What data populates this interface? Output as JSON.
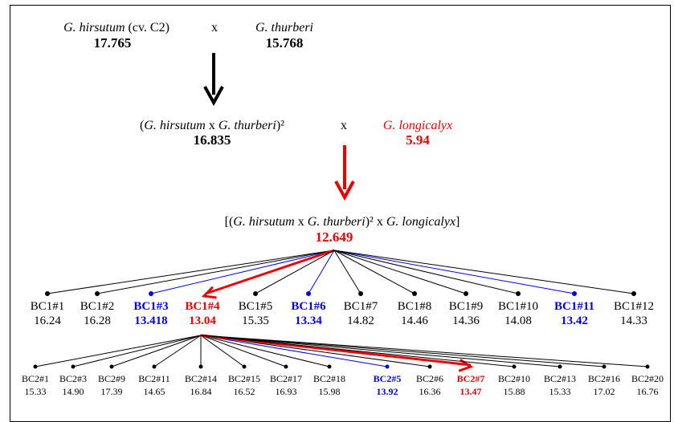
{
  "colors": {
    "default": "#000000",
    "blue": "#0000ee",
    "red": "#ee0000"
  },
  "cross1": {
    "parent_a": {
      "species": "G. hirsutum",
      "note": "(cv. C2)",
      "value": "17.765"
    },
    "x_symbol": "x",
    "parent_b": {
      "species": "G. thurberi",
      "value": "15.768"
    }
  },
  "cross2": {
    "hybrid": {
      "open": "(",
      "species_a": "G. hirsutum",
      "x_symbol": "x",
      "species_b": "G. thurberi",
      "close": ")²",
      "value": "16.835"
    },
    "x_symbol": "x",
    "parent_c": {
      "species": "G. longicalyx",
      "value": "5.94"
    }
  },
  "f1": {
    "open": "[(",
    "species_a": "G. hirsutum",
    "x_symbol_1": "x",
    "species_b": "G. thurberi",
    "close_sq": ")²",
    "x_symbol_2": "x",
    "species_c": "G. longicalyx",
    "close": "]",
    "value": "12.649"
  },
  "bc1": [
    {
      "label": "BC1#1",
      "value": "16.24",
      "color": "default"
    },
    {
      "label": "BC1#2",
      "value": "16.28",
      "color": "default"
    },
    {
      "label": "BC1#3",
      "value": "13.418",
      "color": "blue"
    },
    {
      "label": "BC1#4",
      "value": "13.04",
      "color": "red"
    },
    {
      "label": "BC1#5",
      "value": "15.35",
      "color": "default"
    },
    {
      "label": "BC1#6",
      "value": "13.34",
      "color": "blue"
    },
    {
      "label": "BC1#7",
      "value": "14.82",
      "color": "default"
    },
    {
      "label": "BC1#8",
      "value": "14.46",
      "color": "default"
    },
    {
      "label": "BC1#9",
      "value": "14.36",
      "color": "default"
    },
    {
      "label": "BC1#10",
      "value": "14.08",
      "color": "default"
    },
    {
      "label": "BC1#11",
      "value": "13.42",
      "color": "blue"
    },
    {
      "label": "BC1#12",
      "value": "14.33",
      "color": "default"
    }
  ],
  "bc2": [
    {
      "label": "BC2#1",
      "value": "15.33",
      "color": "default"
    },
    {
      "label": "BC2#3",
      "value": "14.90",
      "color": "default"
    },
    {
      "label": "BC2#9",
      "value": "17.39",
      "color": "default"
    },
    {
      "label": "BC2#11",
      "value": "14.65",
      "color": "default"
    },
    {
      "label": "BC2#14",
      "value": "16.84",
      "color": "default"
    },
    {
      "label": "BC2#15",
      "value": "16.52",
      "color": "default"
    },
    {
      "label": "BC2#17",
      "value": "16.93",
      "color": "default"
    },
    {
      "label": "BC2#18",
      "value": "15.98",
      "color": "default"
    },
    {
      "label": "BC2#5",
      "value": "13.92",
      "color": "blue"
    },
    {
      "label": "BC2#6",
      "value": "16.36",
      "color": "default"
    },
    {
      "label": "BC2#7",
      "value": "13.47",
      "color": "red"
    },
    {
      "label": "BC2#10",
      "value": "15.88",
      "color": "default"
    },
    {
      "label": "BC2#13",
      "value": "15.33",
      "color": "default"
    },
    {
      "label": "BC2#16",
      "value": "17.02",
      "color": "default"
    },
    {
      "label": "BC2#20",
      "value": "16.76",
      "color": "default"
    }
  ]
}
